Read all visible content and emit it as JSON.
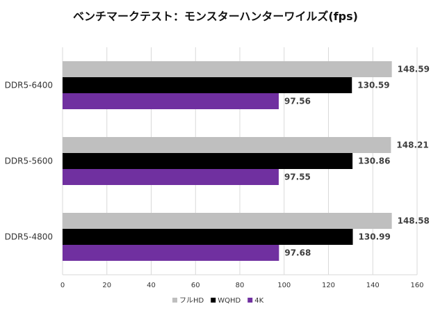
{
  "chart_data": {
    "type": "bar",
    "orientation": "horizontal",
    "title": "ベンチマークテスト：モンスターハンターワイルズ(fps)",
    "categories": [
      "DDR5-6400",
      "DDR5-5600",
      "DDR5-4800"
    ],
    "series": [
      {
        "name": "フルHD",
        "color": "#bfbfbf",
        "values": [
          148.59,
          148.21,
          148.58
        ]
      },
      {
        "name": "WQHD",
        "color": "#000000",
        "values": [
          130.59,
          130.86,
          130.99
        ]
      },
      {
        "name": "4K",
        "color": "#7030a0",
        "values": [
          97.56,
          97.55,
          97.68
        ]
      }
    ],
    "xlim": [
      0,
      160
    ],
    "xticks": [
      0,
      20,
      40,
      60,
      80,
      100,
      120,
      140,
      160
    ],
    "grid": true,
    "legend": "bottom",
    "data_labels": true
  }
}
